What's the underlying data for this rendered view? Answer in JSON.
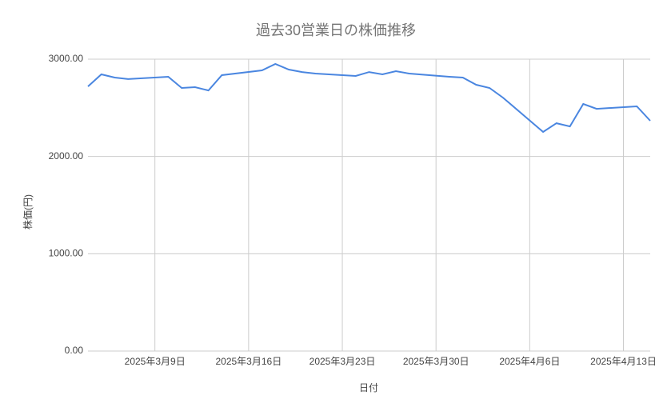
{
  "chart_data": {
    "type": "line",
    "title": "過去30営業日の株価推移",
    "x_label": "日付",
    "y_label": "株価(円)",
    "x": [
      "2025-03-04",
      "2025-03-05",
      "2025-03-06",
      "2025-03-07",
      "2025-03-10",
      "2025-03-11",
      "2025-03-12",
      "2025-03-13",
      "2025-03-14",
      "2025-03-17",
      "2025-03-18",
      "2025-03-19",
      "2025-03-20",
      "2025-03-21",
      "2025-03-24",
      "2025-03-25",
      "2025-03-26",
      "2025-03-27",
      "2025-03-28",
      "2025-03-31",
      "2025-04-01",
      "2025-04-02",
      "2025-04-03",
      "2025-04-04",
      "2025-04-07",
      "2025-04-08",
      "2025-04-09",
      "2025-04-10",
      "2025-04-11",
      "2025-04-14",
      "2025-04-15"
    ],
    "series": [
      {
        "name": "株価",
        "color": "#4a86e0",
        "values": [
          2720,
          2844,
          2811,
          2795,
          2819,
          2704,
          2712,
          2679,
          2836,
          2885,
          2951,
          2893,
          2868,
          2852,
          2827,
          2868,
          2844,
          2877,
          2852,
          2819,
          2811,
          2737,
          2704,
          2605,
          2252,
          2342,
          2309,
          2540,
          2490,
          2515,
          2367
        ]
      }
    ],
    "xlim": [
      "2025-03-04",
      "2025-04-15"
    ],
    "xticks": [
      {
        "value": "2025-03-09",
        "label": "2025年3月9日"
      },
      {
        "value": "2025-03-16",
        "label": "2025年3月16日"
      },
      {
        "value": "2025-03-23",
        "label": "2025年3月23日"
      },
      {
        "value": "2025-03-30",
        "label": "2025年3月30日"
      },
      {
        "value": "2025-04-06",
        "label": "2025年4月6日"
      },
      {
        "value": "2025-04-13",
        "label": "2025年4月13日"
      }
    ],
    "ylim": [
      0,
      3000
    ],
    "yticks": [
      {
        "value": 0,
        "label": "0.00"
      },
      {
        "value": 1000,
        "label": "1000.00"
      },
      {
        "value": 2000,
        "label": "2000.00"
      },
      {
        "value": 3000,
        "label": "3000.00"
      }
    ],
    "grid": true
  }
}
